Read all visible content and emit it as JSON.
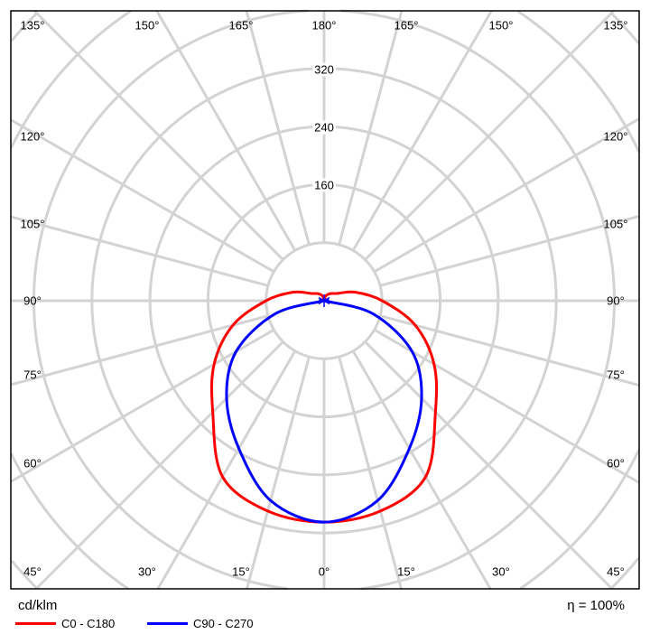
{
  "chart_data": {
    "type": "polar",
    "unit_label": "cd/klm",
    "efficiency_label": "η = 100%",
    "radial_ticks": [
      160,
      240,
      320
    ],
    "radial_grid_step": 80,
    "angle_step_deg": 15,
    "grid": true,
    "legend_placement": "bottom-left",
    "angles": [
      0,
      15,
      30,
      45,
      60,
      75,
      90,
      105,
      120,
      135,
      150,
      165,
      180
    ],
    "series": [
      {
        "name": "C0 - C180",
        "color": "#ff0000",
        "values": [
          305,
          300,
          280,
          217,
          175,
          130,
          80,
          45,
          20,
          14,
          10,
          6,
          0
        ]
      },
      {
        "name": "C90 - C270",
        "color": "#0000ff",
        "values": [
          305,
          285,
          235,
          190,
          140,
          70,
          0,
          0,
          0,
          0,
          0,
          0,
          0
        ]
      }
    ],
    "angle_labels": {
      "left": [
        "135°",
        "120°",
        "105°",
        "90°",
        "75°",
        "60°",
        "45°"
      ],
      "right": [
        "135°",
        "120°",
        "105°",
        "90°",
        "75°",
        "60°",
        "45°"
      ],
      "top": [
        "150°",
        "165°",
        "180°",
        "165°",
        "150°"
      ],
      "bottom": [
        "30°",
        "15°",
        "0°",
        "15°",
        "30°"
      ]
    }
  }
}
